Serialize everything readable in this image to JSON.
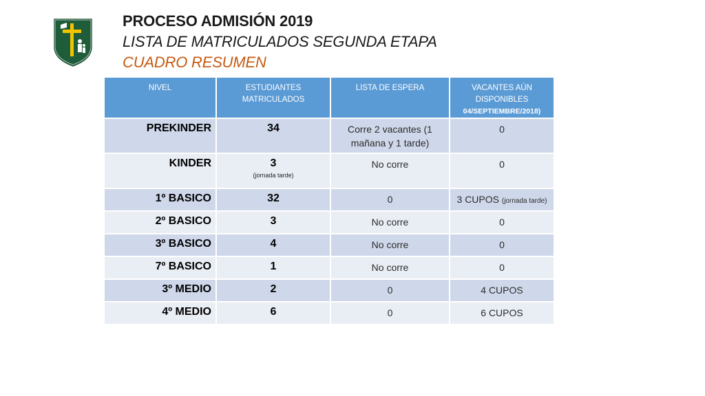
{
  "header": {
    "title": "PROCESO ADMISIÓN 2019",
    "subtitle": "LISTA DE MATRICULADOS SEGUNDA ETAPA",
    "section": "CUADRO RESUMEN"
  },
  "logo": {
    "icon": "school-crest-icon",
    "colors": {
      "shield": "#1f5c3a",
      "cross": "#f2c400",
      "border": "#ffffff"
    }
  },
  "table": {
    "headers": {
      "nivel": "NIVEL",
      "estudiantes_l1": "ESTUDIANTES",
      "estudiantes_l2": "MATRICULADOS",
      "espera": "LISTA DE ESPERA",
      "vacantes_l1": "VACANTES AÚN",
      "vacantes_l2": "DISPONIBLES",
      "vacantes_l3": "04/SEPTIEMBRE/2018)"
    },
    "rows": [
      {
        "level": "PREKINDER",
        "count": "34",
        "count_note": "",
        "wait": "Corre 2 vacantes (1 mañana y 1 tarde)",
        "vac": "0",
        "vac_note": ""
      },
      {
        "level": "KINDER",
        "count": "3",
        "count_note": "(jornada tarde)",
        "wait": "No corre",
        "vac": "0",
        "vac_note": ""
      },
      {
        "level": "1º BASICO",
        "count": "32",
        "count_note": "",
        "wait": "0",
        "vac": "3 CUPOS",
        "vac_note": "(jornada tarde)"
      },
      {
        "level": "2º BASICO",
        "count": "3",
        "count_note": "",
        "wait": "No corre",
        "vac": "0",
        "vac_note": ""
      },
      {
        "level": "3º BASICO",
        "count": "4",
        "count_note": "",
        "wait": "No corre",
        "vac": "0",
        "vac_note": ""
      },
      {
        "level": "7º BASICO",
        "count": "1",
        "count_note": "",
        "wait": "No corre",
        "vac": "0",
        "vac_note": ""
      },
      {
        "level": "3º MEDIO",
        "count": "2",
        "count_note": "",
        "wait": "0",
        "vac": "4 CUPOS",
        "vac_note": ""
      },
      {
        "level": "4º MEDIO",
        "count": "6",
        "count_note": "",
        "wait": "0",
        "vac": "6 CUPOS",
        "vac_note": ""
      }
    ]
  }
}
